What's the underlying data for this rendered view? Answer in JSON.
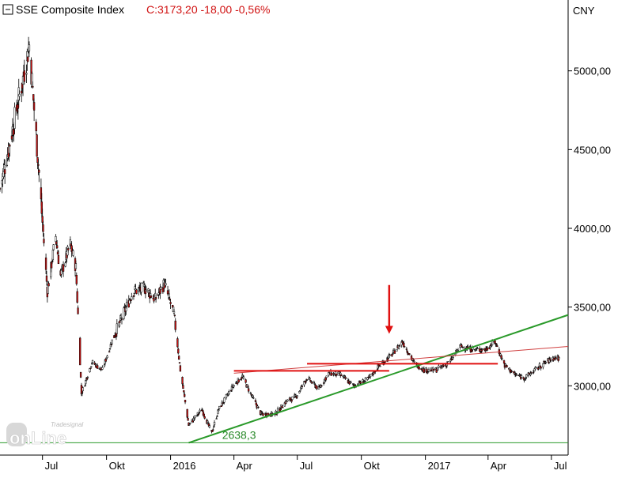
{
  "header": {
    "title": "SSE Composite Index",
    "quote": "C:3173,20 -18,00 -0,56%"
  },
  "branding": {
    "logo_text": "onLine",
    "logo_small": "Tradesignal"
  },
  "colors": {
    "candle_up": "#ffffff",
    "candle_down": "#cc1414",
    "candle_outline": "#000000",
    "support_green": "#2a9a2a",
    "resistance_red": "#e01010",
    "trend_red_thin": "#d04040",
    "annotation_green": "#2a8a2a",
    "arrow_red": "#e01010",
    "title_red": "#d01010"
  },
  "chart_data": {
    "type": "candlestick",
    "title": "SSE Composite Index",
    "currency": "CNY",
    "last_close": 3173.2,
    "change": -18.0,
    "change_pct": -0.56,
    "ylim": [
      2560,
      5450
    ],
    "y_ticks": [
      {
        "value": 3000,
        "label": "3000,00"
      },
      {
        "value": 3500,
        "label": "3500,00"
      },
      {
        "value": 4000,
        "label": "4000,00"
      },
      {
        "value": 4500,
        "label": "4500,00"
      },
      {
        "value": 5000,
        "label": "5000,00"
      }
    ],
    "x_range": [
      "2015-05-01",
      "2017-07-25"
    ],
    "x_ticks": [
      {
        "date": "2015-07-01",
        "label": "Jul"
      },
      {
        "date": "2015-10-01",
        "label": "Okt"
      },
      {
        "date": "2016-01-01",
        "label": "2016"
      },
      {
        "date": "2016-04-01",
        "label": "Apr"
      },
      {
        "date": "2016-07-01",
        "label": "Jul"
      },
      {
        "date": "2016-10-01",
        "label": "Okt"
      },
      {
        "date": "2017-01-01",
        "label": "2017"
      },
      {
        "date": "2017-04-01",
        "label": "Apr"
      },
      {
        "date": "2017-07-01",
        "label": "Jul"
      }
    ],
    "close_path": [
      [
        "2015-05-01",
        4250
      ],
      [
        "2015-05-20",
        4650
      ],
      [
        "2015-06-03",
        4950
      ],
      [
        "2015-06-12",
        5166
      ],
      [
        "2015-06-26",
        4350
      ],
      [
        "2015-07-08",
        3600
      ],
      [
        "2015-07-20",
        3950
      ],
      [
        "2015-07-27",
        3700
      ],
      [
        "2015-08-10",
        3900
      ],
      [
        "2015-08-18",
        3750
      ],
      [
        "2015-08-26",
        2950
      ],
      [
        "2015-09-10",
        3150
      ],
      [
        "2015-09-25",
        3100
      ],
      [
        "2015-10-10",
        3300
      ],
      [
        "2015-10-25",
        3450
      ],
      [
        "2015-11-08",
        3600
      ],
      [
        "2015-11-25",
        3620
      ],
      [
        "2015-12-10",
        3550
      ],
      [
        "2015-12-23",
        3650
      ],
      [
        "2016-01-06",
        3450
      ],
      [
        "2016-01-15",
        3100
      ],
      [
        "2016-01-27",
        2750
      ],
      [
        "2016-02-15",
        2850
      ],
      [
        "2016-02-29",
        2700
      ],
      [
        "2016-03-10",
        2850
      ],
      [
        "2016-03-31",
        3000
      ],
      [
        "2016-04-13",
        3060
      ],
      [
        "2016-04-25",
        2950
      ],
      [
        "2016-05-10",
        2820
      ],
      [
        "2016-05-30",
        2820
      ],
      [
        "2016-06-15",
        2900
      ],
      [
        "2016-06-29",
        2930
      ],
      [
        "2016-07-15",
        3050
      ],
      [
        "2016-08-01",
        2980
      ],
      [
        "2016-08-15",
        3080
      ],
      [
        "2016-09-01",
        3070
      ],
      [
        "2016-09-20",
        3000
      ],
      [
        "2016-10-10",
        3040
      ],
      [
        "2016-10-25",
        3120
      ],
      [
        "2016-11-14",
        3200
      ],
      [
        "2016-11-29",
        3280
      ],
      [
        "2016-12-15",
        3150
      ],
      [
        "2016-12-30",
        3100
      ],
      [
        "2017-01-16",
        3100
      ],
      [
        "2017-02-05",
        3150
      ],
      [
        "2017-02-20",
        3250
      ],
      [
        "2017-03-10",
        3230
      ],
      [
        "2017-03-28",
        3230
      ],
      [
        "2017-04-11",
        3280
      ],
      [
        "2017-04-25",
        3130
      ],
      [
        "2017-05-10",
        3070
      ],
      [
        "2017-05-24",
        3050
      ],
      [
        "2017-06-07",
        3100
      ],
      [
        "2017-06-23",
        3150
      ],
      [
        "2017-07-05",
        3180
      ],
      [
        "2017-07-12",
        3173.2
      ]
    ],
    "lines": [
      {
        "name": "support-horizontal",
        "color": "green",
        "from": [
          "2015-05-01",
          2638.3
        ],
        "to": [
          "2017-07-25",
          2638.3
        ]
      },
      {
        "name": "uptrend",
        "color": "green",
        "from": [
          "2016-01-27",
          2638.3
        ],
        "to": [
          "2017-07-25",
          3450
        ]
      },
      {
        "name": "resistance-thin",
        "color": "red",
        "from": [
          "2016-04-01",
          3080
        ],
        "to": [
          "2017-07-25",
          3250
        ]
      },
      {
        "name": "resistance-1",
        "color": "red",
        "from": [
          "2016-04-01",
          3095
        ],
        "to": [
          "2016-11-10",
          3095
        ]
      },
      {
        "name": "resistance-2",
        "color": "red",
        "from": [
          "2016-07-15",
          3140
        ],
        "to": [
          "2017-04-15",
          3140
        ]
      }
    ],
    "annotations": [
      {
        "text": "2638,3",
        "date": "2016-03-15",
        "value": 2638.3
      },
      {
        "type": "arrow-down",
        "date": "2016-11-10",
        "from_value": 3640,
        "to_value": 3330
      }
    ]
  }
}
